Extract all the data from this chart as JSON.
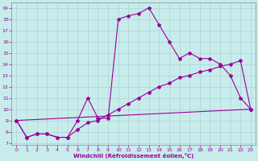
{
  "xlabel": "Windchill (Refroidissement éolien,°C)",
  "xlim": [
    -0.5,
    23.5
  ],
  "ylim": [
    6.8,
    19.5
  ],
  "yticks": [
    7,
    8,
    9,
    10,
    11,
    12,
    13,
    14,
    15,
    16,
    17,
    18,
    19
  ],
  "xticks": [
    0,
    1,
    2,
    3,
    4,
    5,
    6,
    7,
    8,
    9,
    10,
    11,
    12,
    13,
    14,
    15,
    16,
    17,
    18,
    19,
    20,
    21,
    22,
    23
  ],
  "background_color": "#c8ecec",
  "grid_color": "#aad4d4",
  "line_color": "#990099",
  "line1": {
    "x": [
      0,
      1,
      2,
      3,
      4,
      5,
      6,
      7,
      8,
      9,
      10,
      11,
      12,
      13,
      14,
      15,
      16,
      17,
      18,
      19,
      20,
      21,
      22,
      23
    ],
    "y": [
      9.0,
      7.5,
      7.8,
      7.8,
      7.5,
      7.5,
      9.0,
      11.0,
      9.2,
      9.2,
      18.0,
      18.3,
      18.5,
      19.0,
      17.5,
      16.0,
      14.5,
      15.0,
      14.5,
      14.5,
      14.0,
      13.0,
      11.0,
      10.0
    ]
  },
  "line2": {
    "x": [
      0,
      1,
      2,
      3,
      4,
      5,
      6,
      7,
      8,
      9,
      10,
      11,
      12,
      13,
      14,
      15,
      16,
      17,
      18,
      19,
      20,
      21,
      22,
      23
    ],
    "y": [
      9.0,
      7.5,
      7.8,
      7.8,
      7.5,
      7.5,
      8.2,
      8.8,
      9.0,
      9.5,
      10.0,
      10.5,
      11.0,
      11.5,
      12.0,
      12.3,
      12.8,
      13.0,
      13.3,
      13.5,
      13.8,
      14.0,
      14.3,
      10.0
    ]
  },
  "line3": {
    "x": [
      0,
      23
    ],
    "y": [
      9.0,
      10.0
    ]
  }
}
